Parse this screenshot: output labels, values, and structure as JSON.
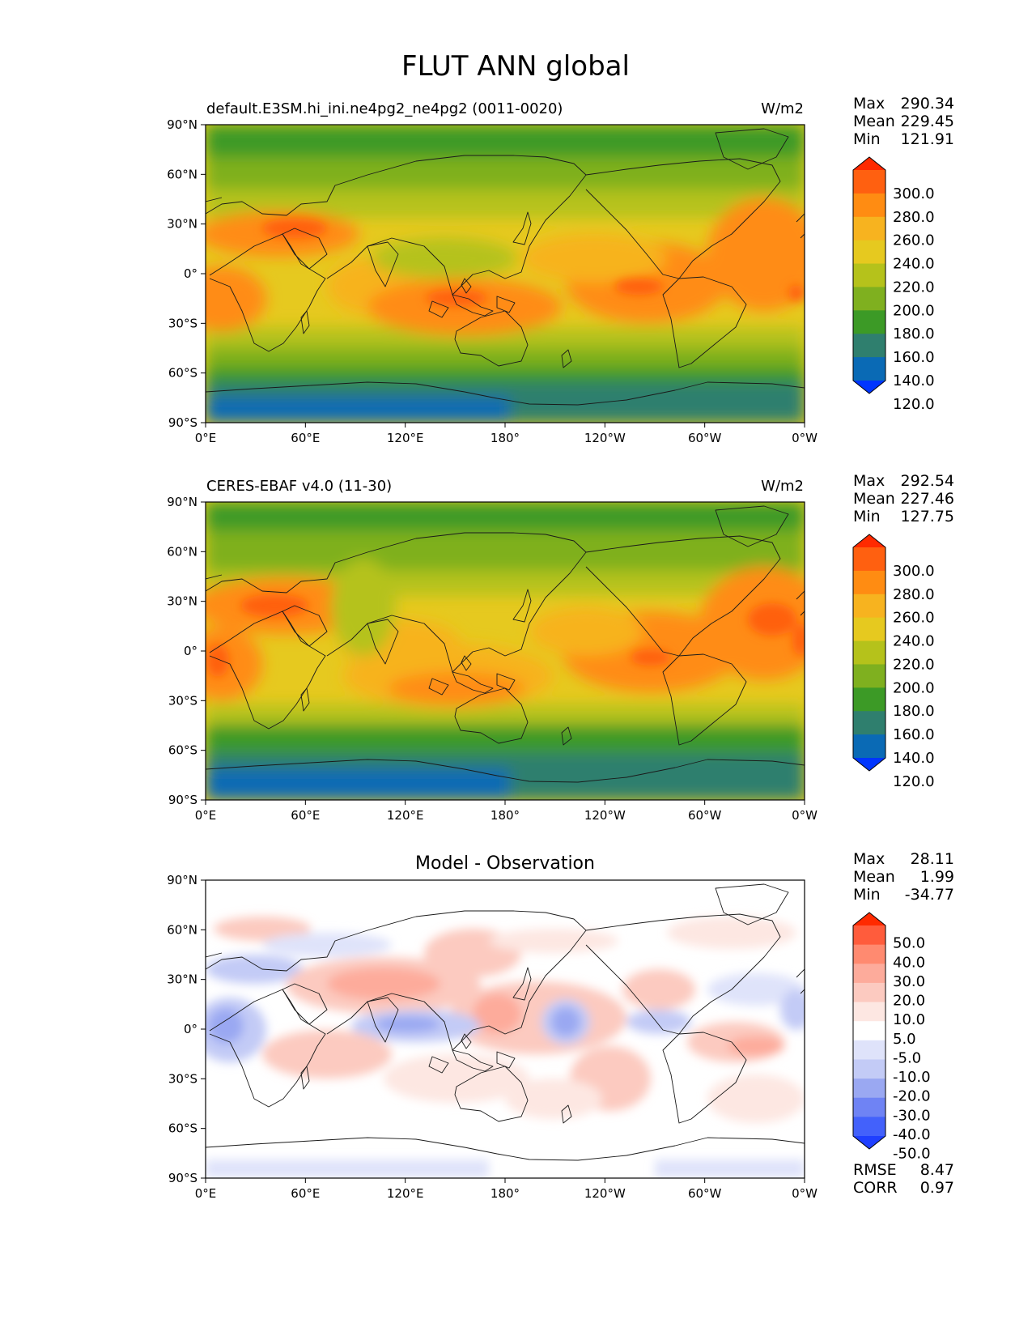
{
  "figure": {
    "title": "FLUT ANN global"
  },
  "lon_ticks": [
    "0°E",
    "60°E",
    "120°E",
    "180°",
    "120°W",
    "60°W",
    "0°W"
  ],
  "lat_ticks": [
    "90°N",
    "60°N",
    "30°N",
    "0°",
    "30°S",
    "60°S",
    "90°S"
  ],
  "panels": [
    {
      "left_title": "default.E3SM.hi_ini.ne4pg2_ne4pg2 (0011-0020)",
      "center_title": "",
      "units": "W/m2",
      "stats": [
        {
          "label": "Max",
          "value": "290.34"
        },
        {
          "label": "Mean",
          "value": "229.45"
        },
        {
          "label": "Min",
          "value": "121.91"
        }
      ],
      "colorbar_labels": [
        "300.0",
        "280.0",
        "260.0",
        "240.0",
        "220.0",
        "200.0",
        "180.0",
        "160.0",
        "140.0",
        "120.0"
      ],
      "colorbar_colors": [
        "#ff2a00",
        "#ff6010",
        "#ff8c12",
        "#f7b31f",
        "#e6c91f",
        "#b5c21b",
        "#7fb01f",
        "#3c9a26",
        "#2f7f6e",
        "#0a6ab5",
        "#0035ff"
      ],
      "footer": []
    },
    {
      "left_title": "CERES-EBAF v4.0 (11-30)",
      "center_title": "",
      "units": "W/m2",
      "stats": [
        {
          "label": "Max",
          "value": "292.54"
        },
        {
          "label": "Mean",
          "value": "227.46"
        },
        {
          "label": "Min",
          "value": "127.75"
        }
      ],
      "colorbar_labels": [
        "300.0",
        "280.0",
        "260.0",
        "240.0",
        "220.0",
        "200.0",
        "180.0",
        "160.0",
        "140.0",
        "120.0"
      ],
      "colorbar_colors": [
        "#ff2a00",
        "#ff6010",
        "#ff8c12",
        "#f7b31f",
        "#e6c91f",
        "#b5c21b",
        "#7fb01f",
        "#3c9a26",
        "#2f7f6e",
        "#0a6ab5",
        "#0035ff"
      ],
      "footer": []
    },
    {
      "left_title": "",
      "center_title": "Model - Observation",
      "units": "",
      "stats": [
        {
          "label": "Max",
          "value": "28.11"
        },
        {
          "label": "Mean",
          "value": "1.99"
        },
        {
          "label": "Min",
          "value": "-34.77"
        }
      ],
      "colorbar_labels": [
        "50.0",
        "40.0",
        "30.0",
        "20.0",
        "10.0",
        "5.0",
        "-5.0",
        "-10.0",
        "-20.0",
        "-30.0",
        "-40.0",
        "-50.0"
      ],
      "colorbar_colors": [
        "#ff2a00",
        "#ff5c3c",
        "#ff8a70",
        "#fdab9b",
        "#fccac0",
        "#fde7e2",
        "#ffffff",
        "#dfe3fa",
        "#c3cbf6",
        "#9aa8f2",
        "#6f83f4",
        "#4361fb",
        "#1f3fff"
      ],
      "footer": [
        {
          "label": "RMSE",
          "value": "8.47"
        },
        {
          "label": "CORR",
          "value": "0.97"
        }
      ]
    }
  ]
}
